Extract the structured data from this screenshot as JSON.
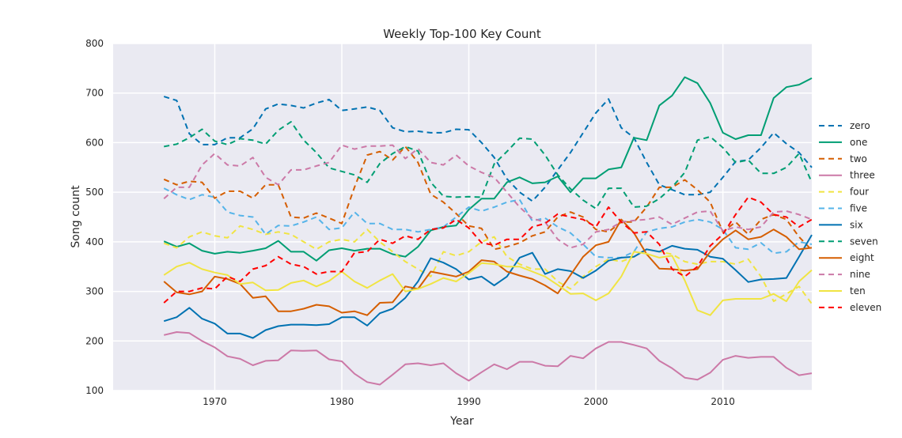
{
  "chart_data": {
    "type": "line",
    "title": "Weekly Top-100 Key Count",
    "xlabel": "Year",
    "ylabel": "Song count",
    "xlim": [
      1962,
      2017
    ],
    "ylim": [
      100,
      800
    ],
    "xticks": [
      1970,
      1980,
      1990,
      2000,
      2010
    ],
    "yticks": [
      100,
      200,
      300,
      400,
      500,
      600,
      700,
      800
    ],
    "grid": true,
    "background": "#EAEAF2",
    "legend_position": "right",
    "x_start": 1966,
    "series": [
      {
        "name": "zero",
        "color": "#0072B2",
        "dashed": true,
        "values": [
          693,
          685,
          618,
          596,
          596,
          610,
          610,
          628,
          668,
          678,
          675,
          670,
          680,
          687,
          665,
          668,
          672,
          665,
          630,
          622,
          623,
          620,
          620,
          627,
          626,
          600,
          570,
          527,
          500,
          482,
          510,
          545,
          580,
          620,
          660,
          688,
          630,
          610,
          560,
          515,
          505,
          495,
          495,
          500,
          530,
          562,
          565,
          590,
          620,
          598,
          580,
          550
        ]
      },
      {
        "name": "one",
        "color": "#009E73",
        "dashed": false,
        "values": [
          401,
          390,
          397,
          382,
          376,
          380,
          378,
          382,
          387,
          402,
          380,
          380,
          362,
          383,
          387,
          382,
          386,
          386,
          375,
          370,
          390,
          423,
          430,
          433,
          465,
          487,
          487,
          520,
          530,
          518,
          520,
          532,
          500,
          528,
          528,
          546,
          550,
          610,
          605,
          675,
          695,
          732,
          720,
          680,
          620,
          607,
          615,
          615,
          690,
          712,
          717,
          730
        ]
      },
      {
        "name": "two",
        "color": "#D55E00",
        "dashed": true,
        "values": [
          526,
          515,
          522,
          520,
          488,
          502,
          502,
          488,
          515,
          515,
          450,
          448,
          458,
          448,
          437,
          510,
          575,
          582,
          565,
          592,
          560,
          496,
          480,
          457,
          432,
          427,
          385,
          390,
          398,
          412,
          420,
          450,
          460,
          450,
          425,
          420,
          440,
          440,
          470,
          510,
          510,
          525,
          505,
          480,
          420,
          440,
          415,
          445,
          455,
          445,
          410,
          383
        ]
      },
      {
        "name": "three",
        "color": "#CC79A7",
        "dashed": false,
        "values": [
          212,
          218,
          216,
          200,
          187,
          169,
          164,
          151,
          160,
          161,
          181,
          180,
          181,
          163,
          159,
          134,
          117,
          112,
          132,
          153,
          155,
          151,
          155,
          135,
          120,
          137,
          153,
          143,
          158,
          158,
          150,
          149,
          170,
          165,
          185,
          198,
          198,
          192,
          185,
          160,
          145,
          126,
          122,
          136,
          162,
          170,
          166,
          168,
          168,
          146,
          131,
          135
        ]
      },
      {
        "name": "four",
        "color": "#F0E442",
        "dashed": true,
        "values": [
          397,
          388,
          410,
          420,
          412,
          408,
          432,
          425,
          415,
          420,
          415,
          400,
          385,
          400,
          405,
          400,
          425,
          400,
          380,
          360,
          345,
          330,
          380,
          372,
          380,
          400,
          410,
          370,
          355,
          345,
          345,
          320,
          305,
          330,
          350,
          365,
          360,
          370,
          385,
          380,
          375,
          360,
          355,
          360,
          360,
          355,
          365,
          330,
          280,
          295,
          310,
          275
        ]
      },
      {
        "name": "five",
        "color": "#56B4E9",
        "dashed": true,
        "values": [
          508,
          495,
          485,
          495,
          490,
          460,
          453,
          450,
          415,
          433,
          432,
          440,
          450,
          425,
          428,
          460,
          437,
          437,
          425,
          425,
          420,
          425,
          430,
          450,
          470,
          462,
          470,
          480,
          485,
          442,
          448,
          430,
          418,
          395,
          370,
          368,
          368,
          380,
          420,
          427,
          430,
          440,
          445,
          440,
          425,
          388,
          385,
          398,
          377,
          380,
          400,
          395
        ]
      },
      {
        "name": "six",
        "color": "#0072B2",
        "dashed": false,
        "values": [
          240,
          248,
          267,
          245,
          235,
          215,
          215,
          206,
          222,
          230,
          233,
          233,
          232,
          234,
          248,
          248,
          231,
          256,
          265,
          287,
          320,
          367,
          358,
          345,
          324,
          330,
          312,
          330,
          368,
          378,
          335,
          345,
          341,
          327,
          342,
          362,
          368,
          370,
          385,
          380,
          392,
          386,
          384,
          370,
          366,
          343,
          319,
          324,
          325,
          327,
          370,
          414
        ]
      },
      {
        "name": "seven",
        "color": "#009E73",
        "dashed": true,
        "values": [
          592,
          597,
          610,
          627,
          603,
          596,
          608,
          605,
          597,
          625,
          642,
          605,
          580,
          549,
          542,
          535,
          520,
          558,
          578,
          592,
          583,
          520,
          492,
          490,
          491,
          490,
          557,
          582,
          609,
          607,
          575,
          535,
          507,
          484,
          467,
          508,
          508,
          470,
          472,
          487,
          510,
          540,
          605,
          612,
          590,
          560,
          565,
          538,
          538,
          550,
          578,
          520
        ]
      },
      {
        "name": "eight",
        "color": "#D55E00",
        "dashed": false,
        "values": [
          320,
          298,
          294,
          300,
          330,
          325,
          315,
          287,
          290,
          260,
          260,
          265,
          273,
          270,
          257,
          260,
          252,
          277,
          278,
          310,
          305,
          340,
          335,
          330,
          340,
          363,
          360,
          340,
          332,
          325,
          312,
          296,
          333,
          370,
          393,
          400,
          445,
          418,
          375,
          346,
          345,
          342,
          345,
          380,
          405,
          423,
          405,
          410,
          425,
          410,
          385,
          388
        ]
      },
      {
        "name": "nine",
        "color": "#CC79A7",
        "dashed": true,
        "values": [
          487,
          510,
          510,
          555,
          578,
          555,
          553,
          570,
          530,
          515,
          545,
          545,
          553,
          560,
          595,
          587,
          593,
          593,
          595,
          568,
          588,
          560,
          555,
          575,
          553,
          540,
          530,
          500,
          470,
          447,
          440,
          405,
          388,
          395,
          420,
          425,
          440,
          443,
          445,
          450,
          435,
          448,
          460,
          462,
          422,
          430,
          425,
          430,
          460,
          462,
          455,
          445
        ]
      },
      {
        "name": "ten",
        "color": "#F0E442",
        "dashed": false,
        "values": [
          333,
          350,
          358,
          345,
          338,
          333,
          315,
          318,
          302,
          303,
          317,
          322,
          310,
          321,
          340,
          320,
          307,
          322,
          335,
          300,
          305,
          315,
          327,
          320,
          337,
          357,
          355,
          350,
          350,
          340,
          330,
          313,
          295,
          296,
          282,
          296,
          330,
          380,
          376,
          368,
          372,
          322,
          262,
          252,
          282,
          285,
          285,
          285,
          295,
          280,
          320,
          343
        ]
      },
      {
        "name": "eleven",
        "color": "#FF0000",
        "dashed": true,
        "values": [
          277,
          300,
          300,
          307,
          305,
          330,
          320,
          345,
          352,
          370,
          355,
          350,
          335,
          340,
          340,
          378,
          380,
          405,
          397,
          412,
          405,
          425,
          428,
          445,
          428,
          398,
          393,
          405,
          405,
          430,
          437,
          456,
          450,
          445,
          430,
          470,
          440,
          418,
          420,
          395,
          345,
          330,
          350,
          392,
          415,
          455,
          490,
          480,
          455,
          450,
          430,
          445
        ]
      }
    ]
  }
}
